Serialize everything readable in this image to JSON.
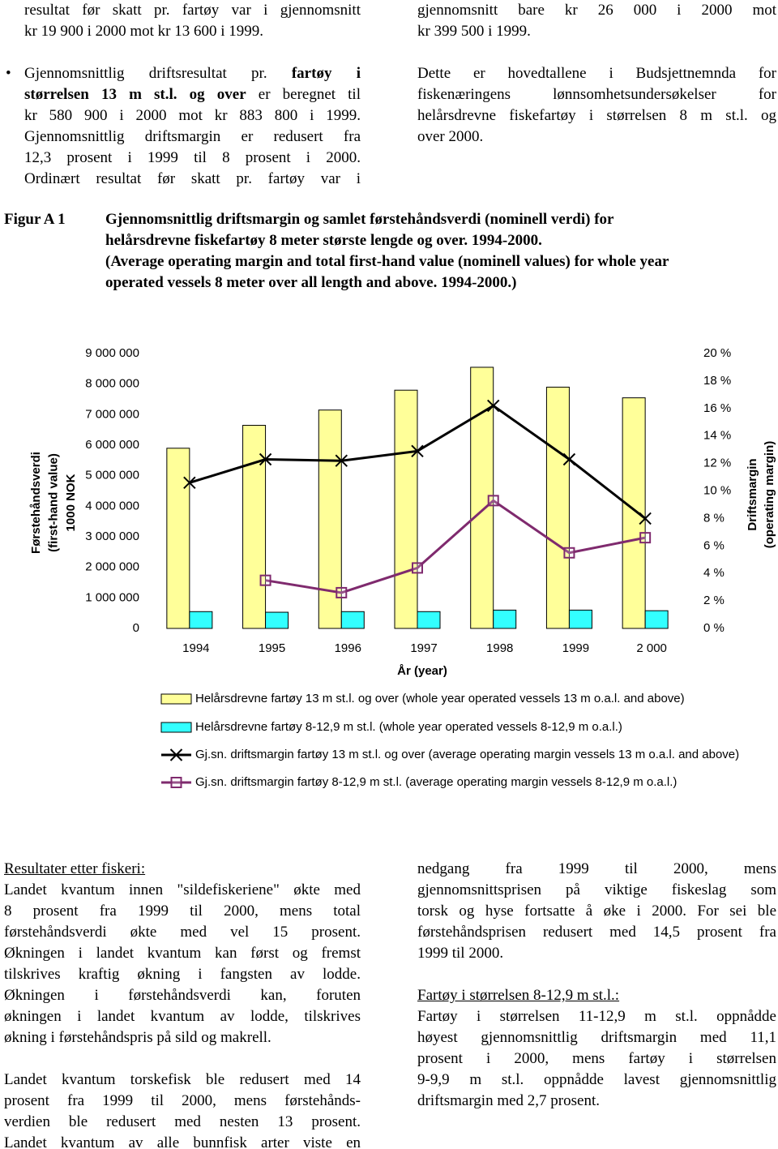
{
  "top_left": {
    "paragraphs": [
      {
        "lines": [
          "resultat før skatt pr. fartøy var i gjennomsnitt",
          "kr 19 900 i 2000 mot kr 13 600 i 1999."
        ]
      },
      {
        "bullet": true,
        "continues": true,
        "lines": [
          [
            {
              "text": "Gjennomsnittlig driftsresultat pr. "
            },
            {
              "text": "fartøy i",
              "bold": true
            }
          ],
          [
            {
              "text": "størrelsen 13 m st.l. og over",
              "bold": true
            },
            {
              "text": " er beregnet til"
            }
          ],
          "kr 580 900 i 2000 mot kr 883 800 i 1999.",
          "Gjennomsnittlig driftsmargin er redusert fra",
          "12,3 prosent i 1999 til 8 prosent i 2000.",
          "Ordinært resultat før skatt pr. fartøy var i"
        ]
      }
    ]
  },
  "top_right": {
    "paragraphs": [
      {
        "lines": [
          "gjennomsnitt bare kr 26 000 i 2000 mot",
          "kr 399 500 i 1999."
        ]
      },
      {
        "lines": [
          "Dette er hovedtallene i Budsjettnemnda for",
          "fiskenæringens lønnsomhetsundersøkelser for",
          "helårsdrevne fiskefartøy i størrelsen 8 m st.l. og",
          "over 2000."
        ]
      }
    ]
  },
  "figure": {
    "label": "Figur A 1",
    "caption": [
      "Gjennomsnittlig driftsmargin og samlet førstehåndsverdi (nominell verdi) for",
      "helårsdrevne fiskefartøy 8 meter største lengde og over. 1994-2000.",
      "(Average operating margin and total first-hand value (nominell values) for whole year",
      "operated vessels 8 meter over all length and above. 1994-2000.)"
    ]
  },
  "chart_data": {
    "type": "bar",
    "categories": [
      "1994",
      "1995",
      "1996",
      "1997",
      "1998",
      "1999",
      "2 000"
    ],
    "x_label": "År (year)",
    "y_label": [
      "Førstehåndsverdi",
      "(first-hand value)",
      "1000 NOK"
    ],
    "y2_label": [
      "Driftsmargin",
      "(operating margin)"
    ],
    "ylim": [
      0,
      9000000
    ],
    "yticks": [
      0,
      {
        "value": 1000000,
        "label": "1 000 000"
      },
      {
        "value": 2000000,
        "label": "2 000 000"
      },
      {
        "value": 3000000,
        "label": "3 000 000"
      },
      {
        "value": 4000000,
        "label": "4 000 000"
      },
      {
        "value": 5000000,
        "label": "5 000 000"
      },
      {
        "value": 6000000,
        "label": "6 000 000"
      },
      {
        "value": 7000000,
        "label": "7 000 000"
      },
      {
        "value": 8000000,
        "label": "8 000 000"
      },
      {
        "value": 9000000,
        "label": "9 000 000"
      }
    ],
    "y2lim": [
      0,
      20
    ],
    "y2ticks": [
      {
        "value": 0,
        "label": "0 %"
      },
      {
        "value": 2,
        "label": "2 %"
      },
      {
        "value": 4,
        "label": "4 %"
      },
      {
        "value": 6,
        "label": "6 %"
      },
      {
        "value": 8,
        "label": "8 %"
      },
      {
        "value": 10,
        "label": "10 %"
      },
      {
        "value": 12,
        "label": "12 %"
      },
      {
        "value": 14,
        "label": "14 %"
      },
      {
        "value": 16,
        "label": "16 %"
      },
      {
        "value": 18,
        "label": "18 %"
      },
      {
        "value": 20,
        "label": "20 %"
      }
    ],
    "series": [
      {
        "name": "Helårsdrevne fartøy 13 m st.l. og over (whole year operated vessels 13 m o.a.l. and above)",
        "type": "bar",
        "color": "#ffff99",
        "values": [
          5900000,
          6650000,
          7150000,
          7800000,
          8550000,
          7900000,
          7550000
        ]
      },
      {
        "name": "Helårsdrevne fartøy 8-12,9 m st.l. (whole year operated vessels 8-12,9 m o.a.l.)",
        "type": "bar",
        "color": "#33ffff",
        "values": [
          550000,
          530000,
          550000,
          550000,
          600000,
          600000,
          580000
        ]
      },
      {
        "name": "Gj.sn. driftsmargin fartøy 13 m st.l. og over (average operating margin vessels 13 m o.a.l. and above)",
        "type": "line",
        "axis": "y2",
        "marker": "x",
        "color": "#000000",
        "values": [
          10.6,
          12.3,
          12.2,
          12.9,
          16.2,
          12.3,
          8.0
        ]
      },
      {
        "name": "Gj.sn. driftsmargin fartøy 8-12,9 m st.l. (average operating margin vessels 8-12,9 m o.a.l.)",
        "type": "line",
        "axis": "y2",
        "marker": "square",
        "color": "#7f2a6e",
        "values": [
          null,
          3.5,
          2.6,
          4.4,
          9.3,
          5.5,
          6.6
        ]
      }
    ]
  },
  "bottom_left": {
    "paragraphs": [
      {
        "heading": "Resultater etter fiskeri:",
        "lines": [
          "Landet kvantum innen \"sildefiskeriene\" økte med",
          "8 prosent fra 1999 til 2000, mens total",
          "førstehåndsverdi økte med vel 15 prosent.",
          "Økningen i landet kvantum kan først og fremst",
          "tilskrives kraftig økning i fangsten av lodde.",
          "Økningen i førstehåndsverdi kan, foruten",
          "økningen i landet kvantum av lodde, tilskrives",
          "økning i førstehåndspris på sild og makrell."
        ]
      },
      {
        "continues": true,
        "lines": [
          "Landet kvantum torskefisk ble redusert med 14",
          "prosent fra 1999 til 2000, mens førstehånds-",
          "verdien ble redusert med nesten 13 prosent.",
          "Landet kvantum av alle bunnfisk arter viste en"
        ]
      }
    ]
  },
  "bottom_right": {
    "paragraphs": [
      {
        "lines": [
          "nedgang fra 1999 til 2000, mens",
          "gjennomsnittsprisen på viktige fiskeslag som",
          "torsk og hyse fortsatte å øke i 2000. For sei ble",
          "førstehåndsprisen redusert med 14,5 prosent fra",
          "1999 til 2000."
        ]
      },
      {
        "heading": "Fartøy i størrelsen 8-12,9 m st.l.:",
        "lines": [
          "Fartøy i størrelsen 11-12,9 m st.l. oppnådde",
          "høyest gjennomsnittlig driftsmargin med 11,1",
          "prosent i 2000, mens fartøy i størrelsen",
          "9-9,9 m st.l. oppnådde lavest gjennomsnittlig",
          "driftsmargin med 2,7 prosent."
        ]
      }
    ]
  }
}
